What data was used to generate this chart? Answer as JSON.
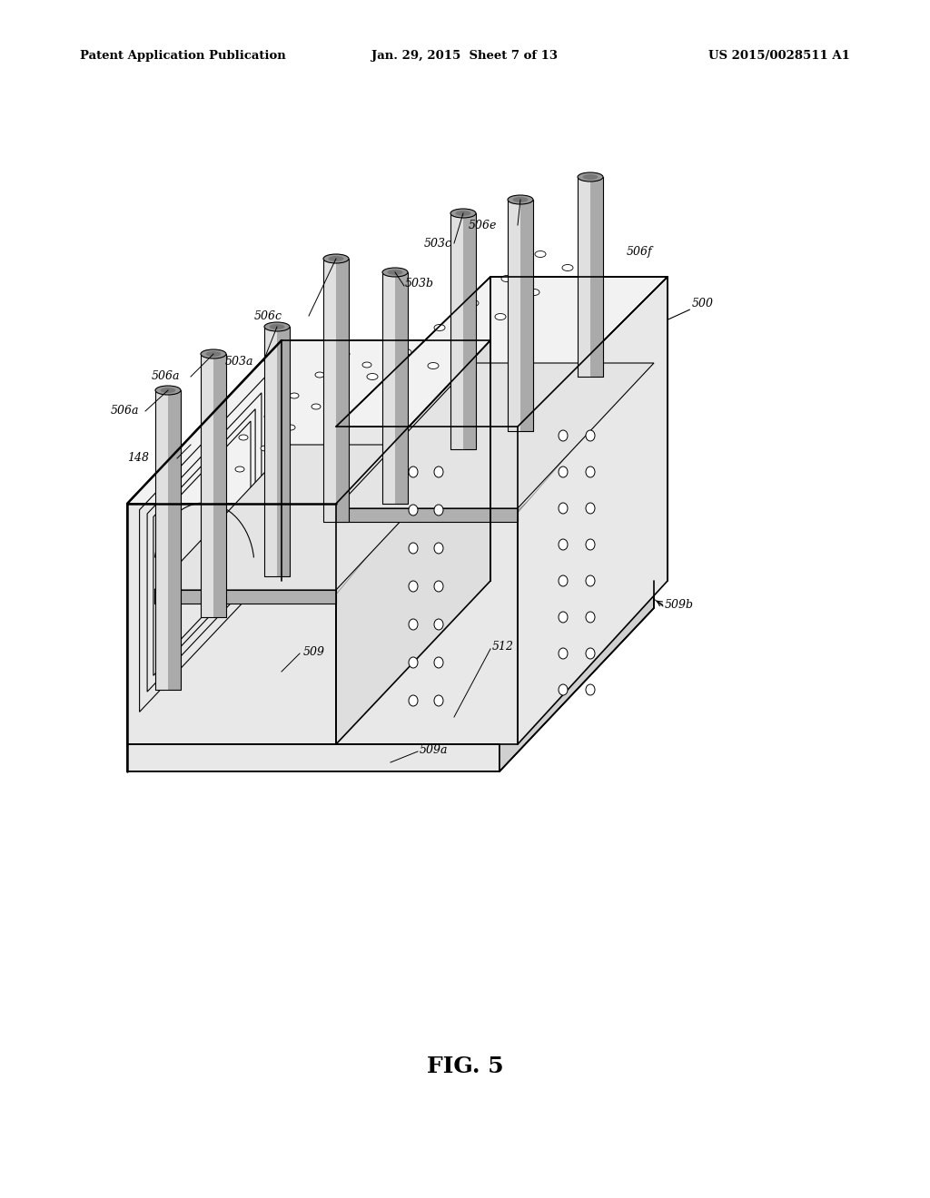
{
  "title": "FIG. 5",
  "header_left": "Patent Application Publication",
  "header_mid": "Jan. 29, 2015  Sheet 7 of 13",
  "header_right": "US 2015/0028511 A1",
  "bg_color": "#ffffff",
  "line_color": "#000000",
  "fig_width": 10.24,
  "fig_height": 13.2,
  "dpi": 100,
  "gray_face": "#e8e8e8",
  "gray_top": "#f2f2f2",
  "gray_side": "#d0d0d0",
  "gray_dark": "#b0b0b0"
}
